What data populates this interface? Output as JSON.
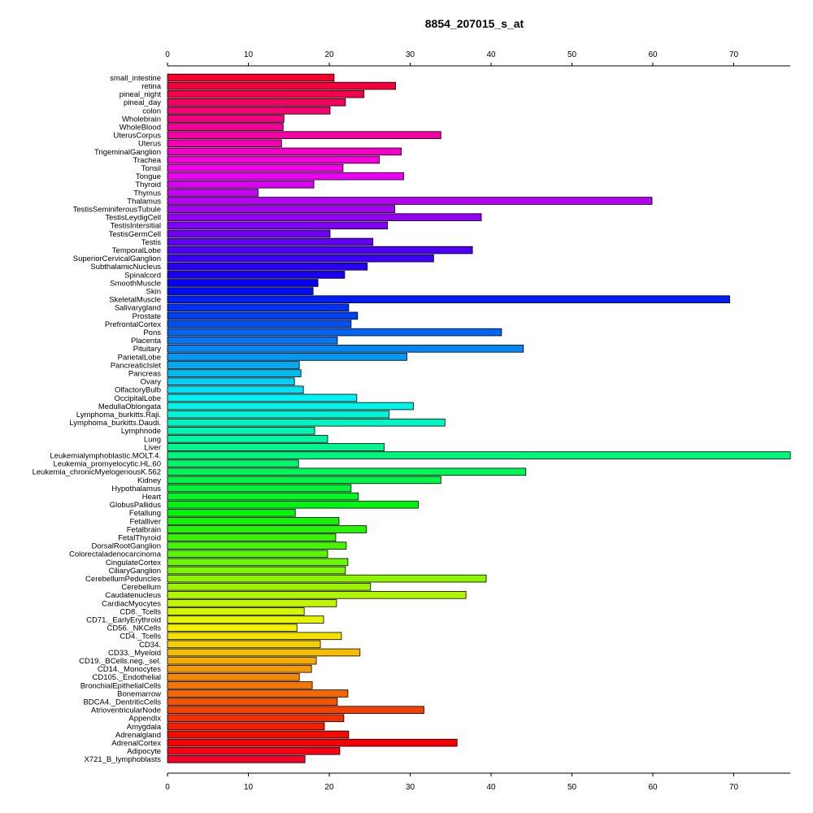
{
  "chart_data": {
    "type": "bar",
    "orientation": "horizontal",
    "title": "8854_207015_s_at",
    "xlim": [
      0,
      77
    ],
    "xticks": [
      0,
      10,
      20,
      30,
      40,
      50,
      60,
      70
    ],
    "axis_positions": [
      "top",
      "bottom"
    ],
    "grid": false,
    "legend": "none",
    "color_scheme": "rainbow",
    "categories": [
      "small_intestine",
      "retina",
      "pineal_night",
      "pineal_day",
      "colon",
      "Wholebrain",
      "WholeBlood",
      "UterusCorpus",
      "Uterus",
      "TrigeminalGanglion",
      "Trachea",
      "Tonsil",
      "Tongue",
      "Thyroid",
      "Thymus",
      "Thalamus",
      "TestisSeminiferousTubule",
      "TestisLeydigCell",
      "TestisIntersitial",
      "TestisGermCell",
      "Testis",
      "TemporalLobe",
      "SuperiorCervicalGanglion",
      "SubthalamicNucleus",
      "Spinalcord",
      "SmoothMuscle",
      "Skin",
      "SkeletalMuscle",
      "Salivarygland",
      "Prostate",
      "PrefrontalCortex",
      "Pons",
      "Placenta",
      "Pituitary",
      "ParietalLobe",
      "PancreaticIslet",
      "Pancreas",
      "Ovary",
      "OlfactoryBulb",
      "OccipitalLobe",
      "MedullaOblongata",
      "Lymphoma_burkitts.Raji.",
      "Lymphoma_burkitts.Daudi.",
      "Lymphnode",
      "Lung",
      "Liver",
      "Leukemialymphoblastic.MOLT.4.",
      "Leukemia_promyelocytic.HL.60",
      "Leukemia_chronicMyelogenousK.562",
      "Kidney",
      "Hypothalamus",
      "Heart",
      "GlobusPallidus",
      "Fetallung",
      "Fetalliver",
      "Fetalbrain",
      "FetalThyroid",
      "DorsalRootGanglion",
      "Colorectaladenocarcinoma",
      "CingulateCortex",
      "CiliaryGanglion",
      "CerebellumPeduncles",
      "Cerebellum",
      "Caudatenucleus",
      "CardiacMyocytes",
      "CD8._Tcells",
      "CD71._EarlyErythroid",
      "CD56._NKCells",
      "CD4._Tcells",
      "CD34.",
      "CD33._Myeloid",
      "CD19._BCells.neg._sel.",
      "CD14._Monocytes",
      "CD105._Endothelial",
      "BronchialEpithelialCells",
      "Bonemarrow",
      "BDCA4._DentriticCells",
      "AtrioventricularNode",
      "Appendix",
      "Amygdala",
      "Adrenalgland",
      "AdrenalCortex",
      "Adipocyte",
      "X721_B_lymphoblasts"
    ],
    "values": [
      20.6,
      28.2,
      24.3,
      22.0,
      20.1,
      14.4,
      14.3,
      33.8,
      14.1,
      28.9,
      26.2,
      21.7,
      29.2,
      18.1,
      11.2,
      59.9,
      28.1,
      38.8,
      27.2,
      20.1,
      25.4,
      37.7,
      32.9,
      24.7,
      21.9,
      18.6,
      18.0,
      69.5,
      22.4,
      23.5,
      22.7,
      41.3,
      21.0,
      44.0,
      29.6,
      16.3,
      16.5,
      15.7,
      16.8,
      23.4,
      30.4,
      27.4,
      34.3,
      18.2,
      19.8,
      26.8,
      77.0,
      16.2,
      44.3,
      33.8,
      22.7,
      23.6,
      31.0,
      15.8,
      21.2,
      24.6,
      20.8,
      22.1,
      19.8,
      22.3,
      22.0,
      39.4,
      25.1,
      36.9,
      20.9,
      16.9,
      19.3,
      16.0,
      21.5,
      18.9,
      23.8,
      18.4,
      17.8,
      16.3,
      17.9,
      22.3,
      21.0,
      31.7,
      21.8,
      19.4,
      22.4,
      35.8,
      21.3,
      17.0
    ]
  }
}
